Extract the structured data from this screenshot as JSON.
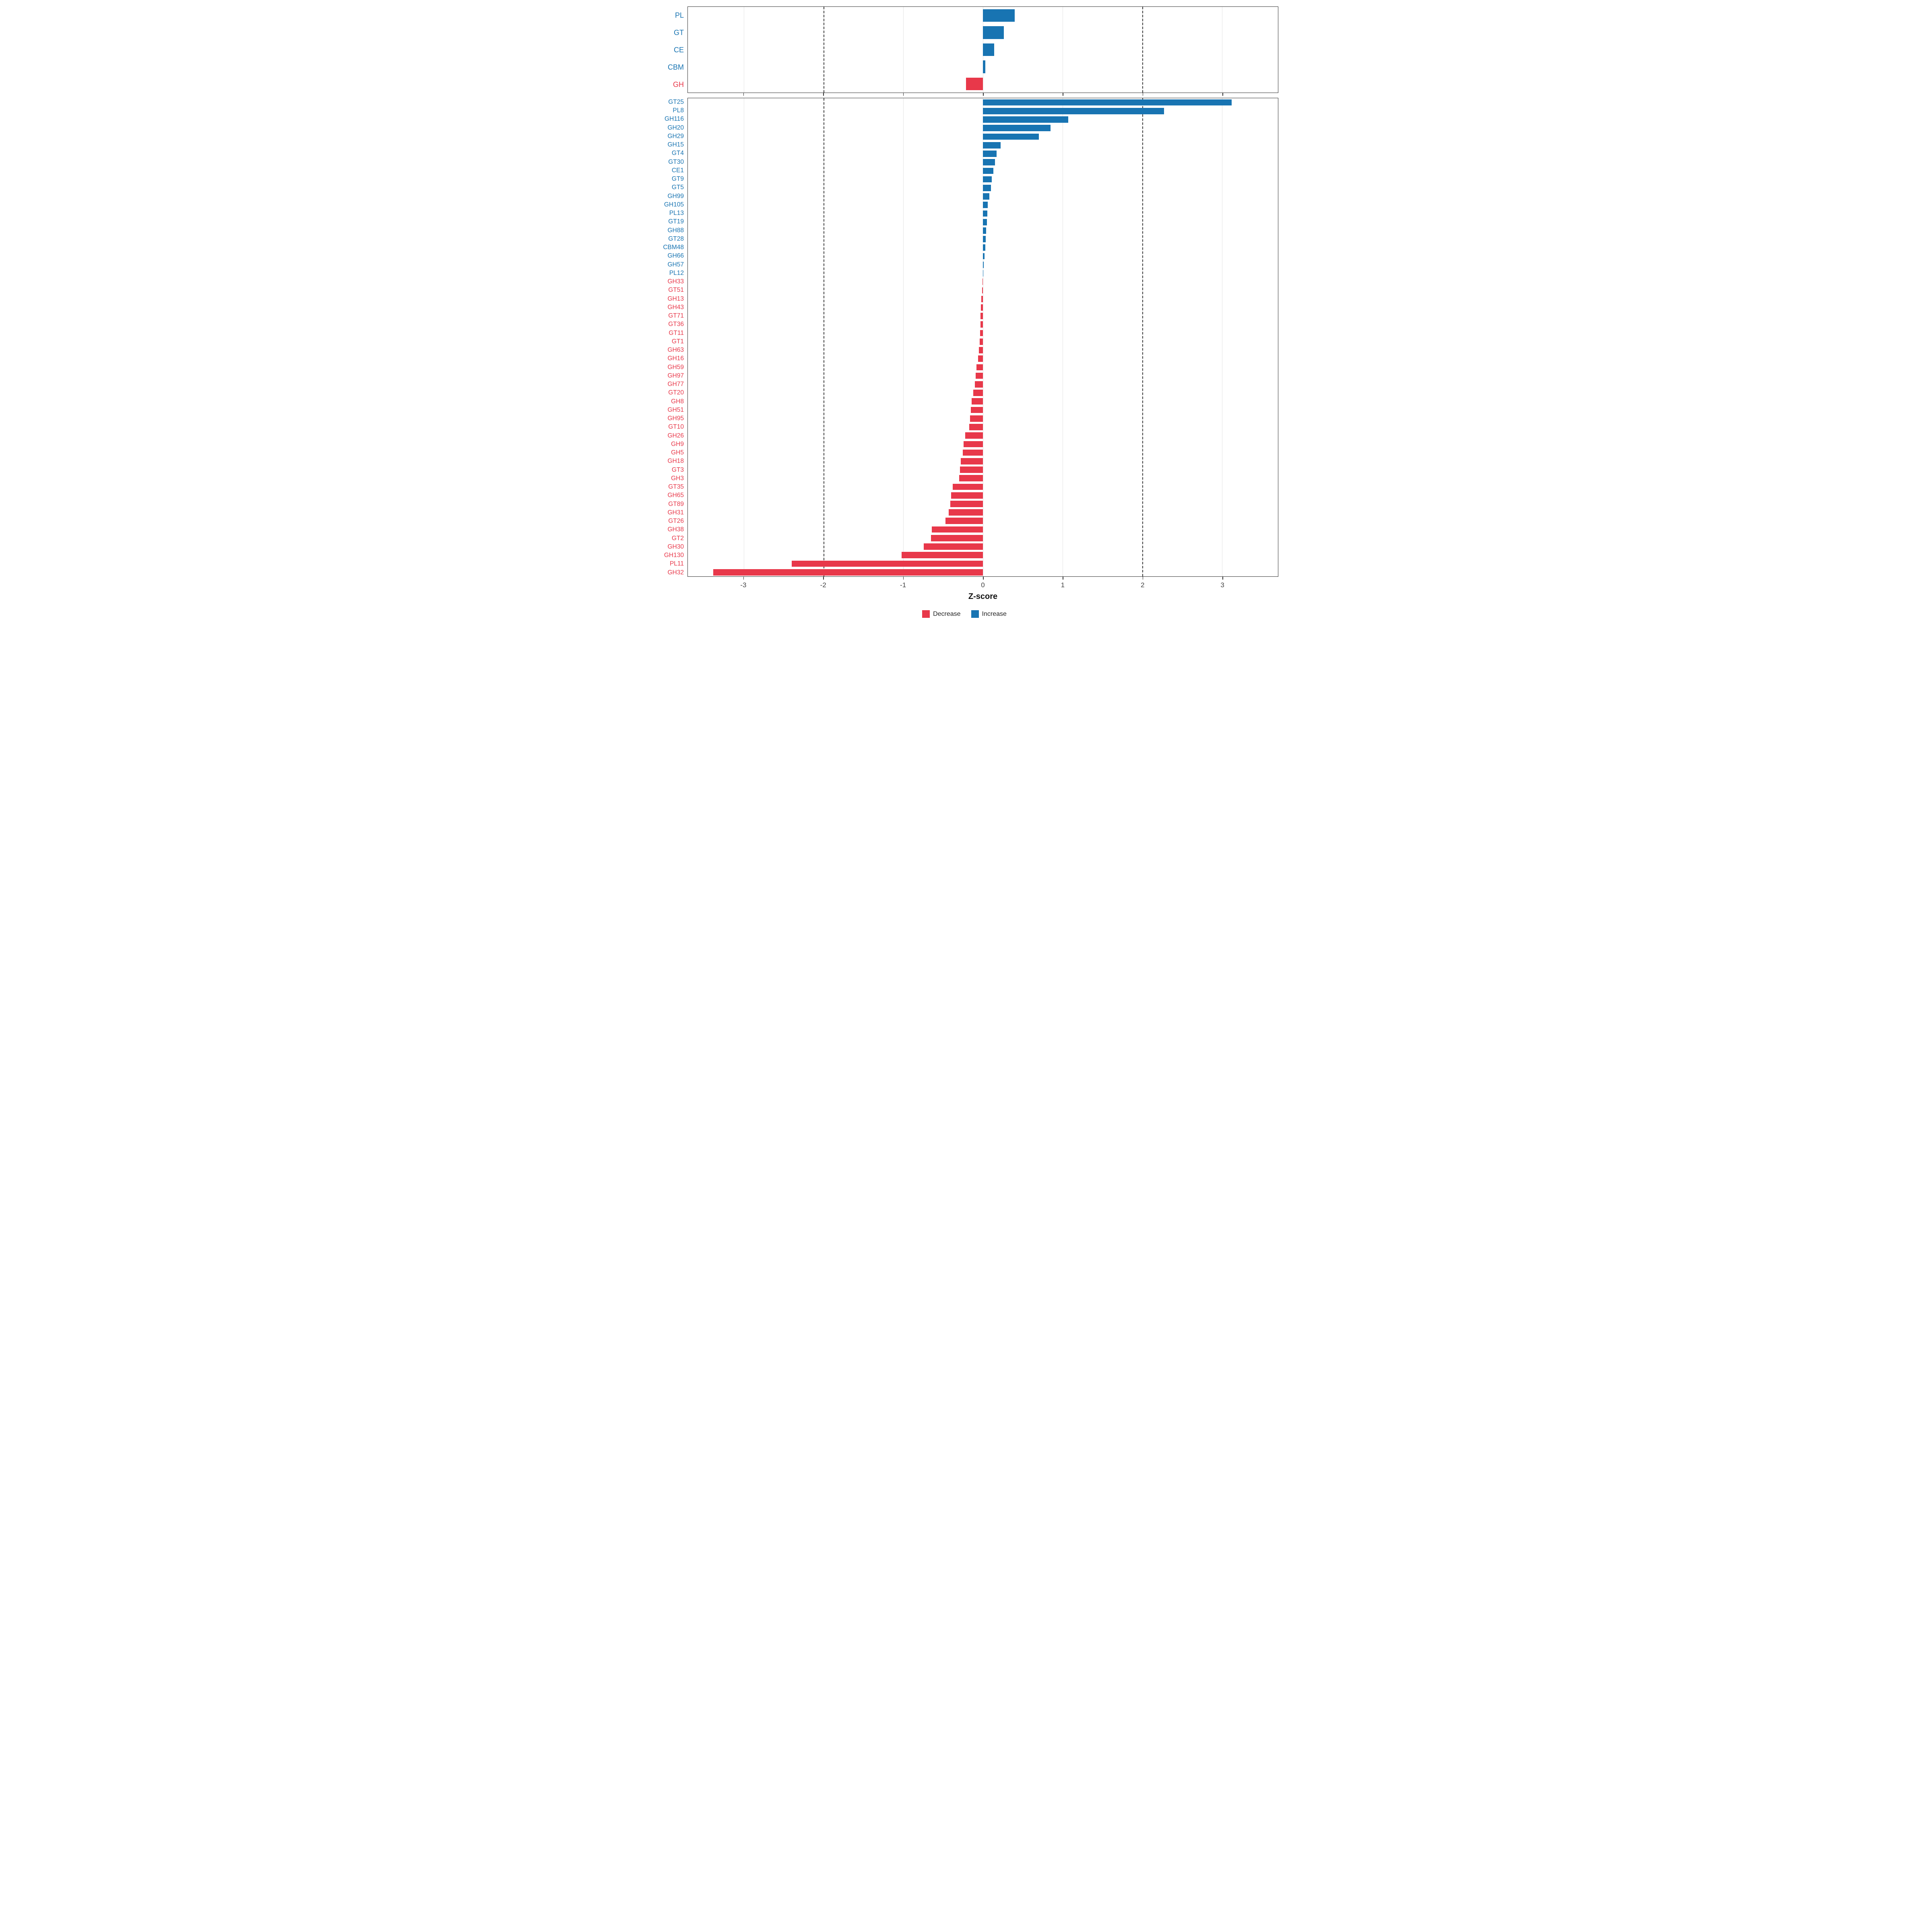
{
  "chart_data": {
    "type": "bar",
    "orientation": "horizontal",
    "title": "",
    "xlabel": "Z-score",
    "xlim": [
      -3.7,
      3.7
    ],
    "x_ticks": [
      -3,
      -2,
      -1,
      0,
      1,
      2,
      3
    ],
    "dashed_reference_lines": [
      -2,
      2
    ],
    "grid": true,
    "increase_color": "#1874b2",
    "decrease_color": "#e8384a",
    "panels": [
      {
        "name": "categories",
        "categories": [
          "PL",
          "GT",
          "CE",
          "CBM",
          "GH"
        ],
        "values": [
          0.4,
          0.26,
          0.14,
          0.03,
          -0.21
        ]
      },
      {
        "name": "families",
        "categories": [
          "GT25",
          "PL8",
          "GH116",
          "GH20",
          "GH29",
          "GH15",
          "GT4",
          "GT30",
          "CE1",
          "GT9",
          "GT5",
          "GH99",
          "GH105",
          "PL13",
          "GT19",
          "GH88",
          "GT28",
          "CBM48",
          "GH66",
          "GH57",
          "PL12",
          "GH33",
          "GT51",
          "GH13",
          "GH43",
          "GT71",
          "GT36",
          "GT11",
          "GT1",
          "GH63",
          "GH16",
          "GH59",
          "GH97",
          "GH77",
          "GT20",
          "GH8",
          "GH51",
          "GH95",
          "GT10",
          "GH26",
          "GH9",
          "GH5",
          "GH18",
          "GT3",
          "GH3",
          "GT35",
          "GH65",
          "GT89",
          "GH31",
          "GT26",
          "GH38",
          "GT2",
          "GH30",
          "GH130",
          "PL11",
          "GH32"
        ],
        "values": [
          3.12,
          2.27,
          1.07,
          0.85,
          0.7,
          0.22,
          0.17,
          0.15,
          0.13,
          0.11,
          0.1,
          0.08,
          0.06,
          0.055,
          0.05,
          0.04,
          0.035,
          0.03,
          0.02,
          0.01,
          0.005,
          -0.005,
          -0.01,
          -0.02,
          -0.025,
          -0.03,
          -0.03,
          -0.035,
          -0.04,
          -0.05,
          -0.06,
          -0.08,
          -0.09,
          -0.1,
          -0.12,
          -0.14,
          -0.15,
          -0.16,
          -0.17,
          -0.22,
          -0.24,
          -0.25,
          -0.28,
          -0.29,
          -0.3,
          -0.38,
          -0.4,
          -0.41,
          -0.43,
          -0.47,
          -0.64,
          -0.65,
          -0.74,
          -1.02,
          -2.4,
          -3.38
        ]
      }
    ],
    "legend": {
      "position": "bottom",
      "items": [
        {
          "label": "Decrease",
          "color": "#e8384a"
        },
        {
          "label": "Increase",
          "color": "#1874b2"
        }
      ]
    }
  }
}
